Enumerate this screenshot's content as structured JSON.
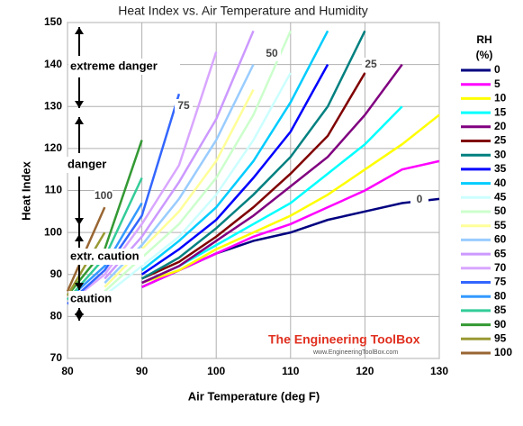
{
  "chart_data": {
    "type": "line",
    "title": "Heat Index vs. Air Temperature and Humidity",
    "x_label": "Air Temperature (deg F)",
    "y_label": "Heat Index",
    "legend_title": [
      "RH",
      "(%)"
    ],
    "x": [
      80,
      85,
      90,
      95,
      100,
      105,
      110,
      115,
      120,
      125,
      130
    ],
    "xlim": [
      80,
      130
    ],
    "xticks": [
      80,
      90,
      100,
      110,
      120,
      130
    ],
    "ylim": [
      70,
      150
    ],
    "yticks": [
      70,
      80,
      90,
      100,
      110,
      120,
      130,
      140,
      150
    ],
    "grid": true,
    "legend": "right",
    "series": [
      {
        "name": "0",
        "color": "#000080",
        "values": [
          null,
          null,
          87,
          91,
          95,
          98,
          100,
          103,
          105,
          107,
          108
        ]
      },
      {
        "name": "5",
        "color": "#ff00ff",
        "values": [
          null,
          null,
          87,
          91,
          95,
          99,
          102,
          106,
          110,
          115,
          117
        ]
      },
      {
        "name": "10",
        "color": "#ffff00",
        "values": [
          null,
          null,
          88,
          91,
          96,
          100,
          104,
          109,
          115,
          121,
          128
        ]
      },
      {
        "name": "15",
        "color": "#00ffff",
        "values": [
          null,
          null,
          88,
          92,
          97,
          102,
          107,
          114,
          121,
          130,
          null
        ]
      },
      {
        "name": "20",
        "color": "#800080",
        "values": [
          null,
          null,
          88,
          92,
          98,
          104,
          111,
          118,
          128,
          140,
          null
        ]
      },
      {
        "name": "25",
        "color": "#800000",
        "values": [
          null,
          null,
          89,
          93,
          99,
          106,
          114,
          123,
          138,
          null,
          null
        ]
      },
      {
        "name": "30",
        "color": "#008080",
        "values": [
          null,
          null,
          89,
          94,
          101,
          109,
          118,
          130,
          148,
          null,
          null
        ]
      },
      {
        "name": "35",
        "color": "#0000ff",
        "values": [
          null,
          null,
          90,
          96,
          103,
          113,
          124,
          140,
          null,
          null,
          null
        ]
      },
      {
        "name": "40",
        "color": "#00ccff",
        "values": [
          null,
          null,
          91,
          98,
          106,
          117,
          131,
          148,
          null,
          null,
          null
        ]
      },
      {
        "name": "45",
        "color": "#ccffff",
        "values": [
          null,
          85,
          92,
          99,
          109,
          122,
          138,
          null,
          null,
          null,
          null
        ]
      },
      {
        "name": "50",
        "color": "#ccffcc",
        "values": [
          null,
          86,
          94,
          102,
          113,
          128,
          148,
          null,
          null,
          null,
          null
        ]
      },
      {
        "name": "55",
        "color": "#ffff99",
        "values": [
          null,
          87,
          96,
          105,
          117,
          134,
          null,
          null,
          null,
          null,
          null
        ]
      },
      {
        "name": "60",
        "color": "#99ccff",
        "values": [
          null,
          88,
          97,
          108,
          122,
          140,
          null,
          null,
          null,
          null,
          null
        ]
      },
      {
        "name": "65",
        "color": "#cc99ff",
        "values": [
          null,
          89,
          99,
          112,
          127,
          148,
          null,
          null,
          null,
          null,
          null
        ]
      },
      {
        "name": "70",
        "color": "#d9a6ff",
        "values": [
          83,
          90,
          102,
          116,
          143,
          null,
          null,
          null,
          null,
          null,
          null
        ]
      },
      {
        "name": "75",
        "color": "#3366ff",
        "values": [
          83,
          91,
          104,
          133,
          null,
          null,
          null,
          null,
          null,
          null,
          null
        ]
      },
      {
        "name": "80",
        "color": "#3399ff",
        "values": [
          84,
          92,
          107,
          null,
          null,
          null,
          null,
          null,
          null,
          null,
          null
        ]
      },
      {
        "name": "85",
        "color": "#33cc99",
        "values": [
          84,
          94,
          113,
          null,
          null,
          null,
          null,
          null,
          null,
          null,
          null
        ]
      },
      {
        "name": "90",
        "color": "#339933",
        "values": [
          85,
          96,
          122,
          null,
          null,
          null,
          null,
          null,
          null,
          null,
          null
        ]
      },
      {
        "name": "95",
        "color": "#999933",
        "values": [
          85,
          100,
          null,
          null,
          null,
          null,
          null,
          null,
          null,
          null,
          null
        ]
      },
      {
        "name": "100",
        "color": "#996633",
        "values": [
          86,
          106,
          null,
          null,
          null,
          null,
          null,
          null,
          null,
          null,
          null
        ]
      }
    ],
    "zones": [
      "extreme danger",
      "danger",
      "extr. caution",
      "caution"
    ],
    "curve_labels": [
      "0",
      "25",
      "50",
      "75",
      "100"
    ],
    "watermark": [
      "The Engineering ToolBox",
      "www.EngineeringToolBox.com"
    ]
  }
}
